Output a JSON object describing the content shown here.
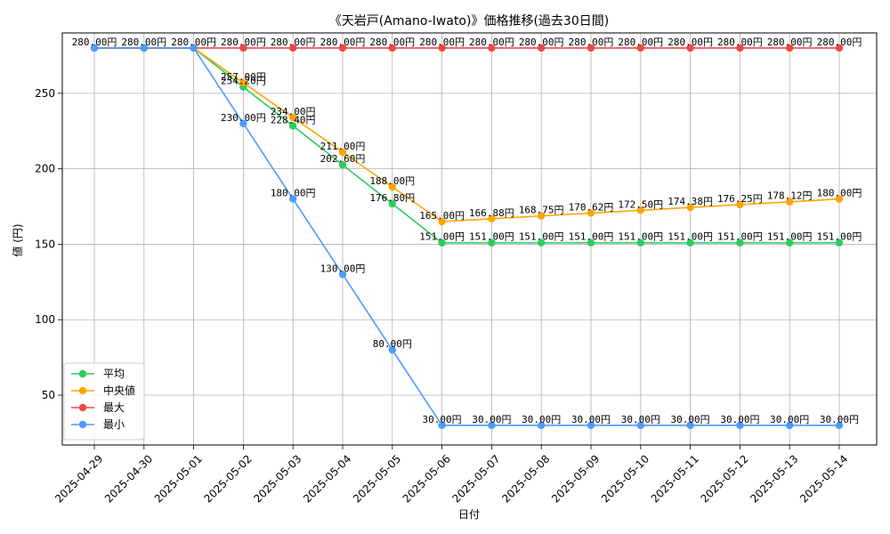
{
  "chart_data": {
    "type": "line",
    "title": "《天岩戸(Amano-Iwato)》価格推移(過去30日間)",
    "xlabel": "日付",
    "ylabel": "値 (円)",
    "ylim": [
      17,
      290
    ],
    "yticks": [
      50,
      100,
      150,
      200,
      250
    ],
    "grid": true,
    "legend_position": "lower-left",
    "label_suffix": "円",
    "categories": [
      "2025-04-29",
      "2025-04-30",
      "2025-05-01",
      "2025-05-02",
      "2025-05-03",
      "2025-05-04",
      "2025-05-05",
      "2025-05-06",
      "2025-05-07",
      "2025-05-08",
      "2025-05-09",
      "2025-05-10",
      "2025-05-11",
      "2025-05-12",
      "2025-05-13",
      "2025-05-14"
    ],
    "series": [
      {
        "name": "平均",
        "color": "#2ecc5f",
        "values": [
          280,
          280,
          280,
          254.2,
          228.4,
          202.6,
          176.8,
          151,
          151,
          151,
          151,
          151,
          151,
          151,
          151,
          151
        ],
        "labels": [
          null,
          null,
          null,
          "254.20円",
          "228.40円",
          "202.60円",
          "176.80円",
          "151.00円",
          "151.00円",
          "151.00円",
          "151.00円",
          "151.00円",
          "151.00円",
          "151.00円",
          "151.00円",
          "151.00円"
        ]
      },
      {
        "name": "中央値",
        "color": "#ffa500",
        "values": [
          280,
          280,
          280,
          257,
          234,
          211,
          188,
          165,
          166.88,
          168.75,
          170.62,
          172.5,
          174.38,
          176.25,
          178.12,
          180
        ],
        "labels": [
          null,
          null,
          null,
          "257.00円",
          "234.00円",
          "211.00円",
          "188.00円",
          "165.00円",
          "166.88円",
          "168.75円",
          "170.62円",
          "172.50円",
          "174.38円",
          "176.25円",
          "178.12円",
          "180.00円"
        ]
      },
      {
        "name": "最大",
        "color": "#f04747",
        "values": [
          280,
          280,
          280,
          280,
          280,
          280,
          280,
          280,
          280,
          280,
          280,
          280,
          280,
          280,
          280,
          280
        ],
        "labels": [
          "280.00円",
          "280.00円",
          "280.00円",
          "280.00円",
          "280.00円",
          "280.00円",
          "280.00円",
          "280.00円",
          "280.00円",
          "280.00円",
          "280.00円",
          "280.00円",
          "280.00円",
          "280.00円",
          "280.00円",
          "280.00円"
        ]
      },
      {
        "name": "最小",
        "color": "#4d9bff",
        "values": [
          280,
          280,
          280,
          230,
          180,
          130,
          80,
          30,
          30,
          30,
          30,
          30,
          30,
          30,
          30,
          30
        ],
        "labels": [
          null,
          null,
          null,
          "230.00円",
          "180.00円",
          "130.00円",
          "80.00円",
          "30.00円",
          "30.00円",
          "30.00円",
          "30.00円",
          "30.00円",
          "30.00円",
          "30.00円",
          "30.00円",
          "30.00円"
        ]
      }
    ]
  }
}
